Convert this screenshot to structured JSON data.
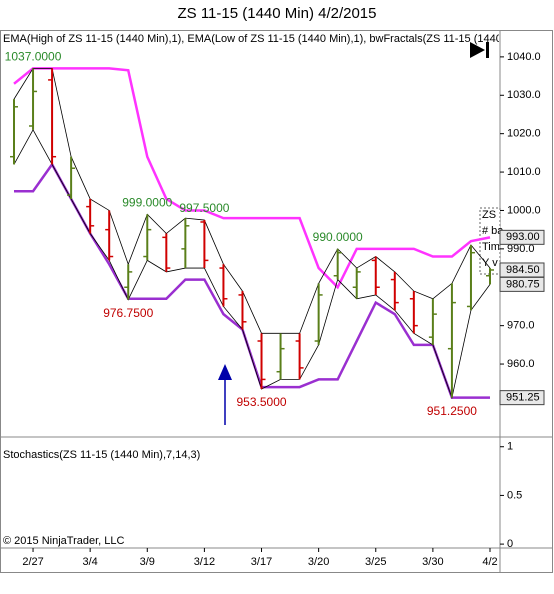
{
  "chart_data": {
    "type": "ohlc",
    "title": "ZS 11-15 (1440 Min)  4/2/2015",
    "indicator_label": "EMA(High of ZS 11-15 (1440 Min),1), EMA(Low of ZS 11-15 (1440 Min),1), bwFractals(ZS 11-15 (1440",
    "copyright": "© 2015 NinjaTrader, LLC",
    "categories": [
      null,
      "2/27",
      null,
      null,
      "3/4",
      null,
      null,
      "3/9",
      null,
      null,
      "3/12",
      null,
      null,
      "3/17",
      null,
      null,
      "3/20",
      null,
      null,
      "3/25",
      null,
      null,
      "3/30",
      null,
      null,
      "4/2"
    ],
    "open": [
      1014,
      1022,
      1034,
      1004,
      1001,
      995,
      980,
      988,
      993,
      990,
      997,
      985,
      978,
      966,
      958,
      966,
      966,
      983,
      980,
      987,
      982,
      977,
      967,
      964,
      975,
      983
    ],
    "high": [
      1029,
      1037,
      1037,
      1014,
      1003,
      1000,
      986,
      999,
      994,
      998,
      997.5,
      986,
      979,
      968,
      968,
      968,
      981,
      990,
      985,
      988,
      984,
      979,
      977,
      981,
      991,
      985
    ],
    "low": [
      1012,
      1021,
      1012,
      1003,
      994,
      987,
      976.75,
      987,
      984,
      985,
      985,
      975,
      969,
      953.5,
      956,
      956,
      965,
      982,
      977,
      978,
      974,
      968,
      965,
      951.25,
      974,
      980.75
    ],
    "close": [
      1027,
      1031,
      1014,
      1011,
      996,
      988,
      984,
      995,
      985,
      996,
      987,
      977,
      971,
      956,
      964,
      959,
      978,
      989,
      984,
      980,
      976,
      970,
      973,
      976,
      989,
      984.5
    ],
    "up_color": "#5a7f1a",
    "down_color": "#d00000",
    "series": [
      {
        "name": "EMA(High of ZS 11-15 (1440 Min),1)",
        "color": "#ff33ff",
        "values": [
          1033,
          1037,
          1037,
          1037,
          1037,
          1037,
          1036.5,
          1014,
          1003,
          1000,
          1000,
          998,
          998,
          998,
          998,
          998,
          985,
          980,
          990,
          990,
          990,
          990,
          988,
          988,
          992,
          993
        ]
      },
      {
        "name": "EMA(Low of ZS 11-15 (1440 Min),1)",
        "color": "#9a2fd0",
        "values": [
          1005,
          1005,
          1012,
          1003,
          994,
          986,
          977,
          977,
          977,
          982,
          982,
          973,
          969,
          954,
          954,
          954,
          956,
          956,
          966,
          976,
          973,
          965,
          965,
          951.25,
          951.25,
          951.25
        ]
      }
    ],
    "fractals": [
      {
        "index": 1,
        "value": 1037,
        "label": "1037.0000"
      },
      {
        "index": 7,
        "value": 999,
        "label": "999.0000"
      },
      {
        "index": 10,
        "value": 997.5,
        "label": "997.5000"
      },
      {
        "index": 6,
        "value": 976.75,
        "label": "976.7500"
      },
      {
        "index": 13,
        "value": 953.5,
        "label": "953.5000"
      },
      {
        "index": 17,
        "value": 990,
        "label": "990.0000"
      },
      {
        "index": 23,
        "value": 951.25,
        "label": "951.2500"
      }
    ],
    "price_markers": [
      {
        "value": 993,
        "label": "993.00"
      },
      {
        "value": 984.5,
        "label": "984.50"
      },
      {
        "value": 980.75,
        "label": "980.75"
      },
      {
        "value": 951.25,
        "label": "951.25"
      }
    ],
    "tooltip_lines": [
      "ZS",
      "# ba",
      "Tim",
      "Y v"
    ],
    "ylim": [
      941,
      1047
    ],
    "yticks": [
      {
        "value": 960,
        "label": "960.0"
      },
      {
        "value": 970,
        "label": "970.0"
      },
      {
        "value": 980,
        "label": "980.0"
      },
      {
        "value": 990,
        "label": "990.0"
      },
      {
        "value": 1000,
        "label": "1000.0"
      },
      {
        "value": 1010,
        "label": "1010.0"
      },
      {
        "value": 1020,
        "label": "1020.0"
      },
      {
        "value": 1030,
        "label": "1030.0"
      },
      {
        "value": 1040,
        "label": "1040.0"
      }
    ],
    "lower_panel": {
      "title": "Stochastics(ZS 11-15 (1440 Min),7,14,3)",
      "ylim": [
        -0.04,
        1.1
      ],
      "yticks": [
        0,
        0.5,
        1
      ]
    }
  }
}
